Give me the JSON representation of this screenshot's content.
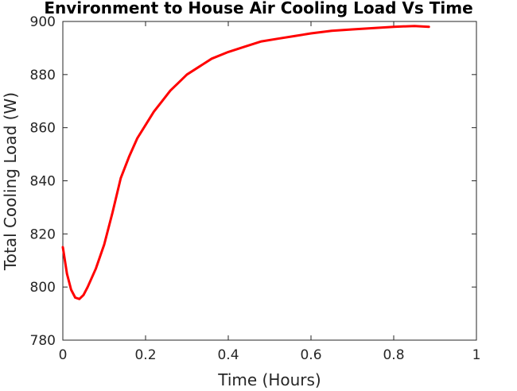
{
  "chart_data": {
    "type": "line",
    "title": "Environment to House Air Cooling Load Vs Time",
    "xlabel": "Time (Hours)",
    "ylabel": "Total Cooling Load (W)",
    "xlim": [
      0,
      1
    ],
    "ylim": [
      780,
      900
    ],
    "xticks": [
      "0",
      "0.2",
      "0.4",
      "0.6",
      "0.8",
      "1"
    ],
    "yticks": [
      "780",
      "800",
      "820",
      "840",
      "860",
      "880",
      "900"
    ],
    "grid": false,
    "line_color": "#ff0000",
    "series": [
      {
        "x": [
          0,
          0.01,
          0.02,
          0.03,
          0.04,
          0.05,
          0.06,
          0.08,
          0.1,
          0.12,
          0.14,
          0.16,
          0.18,
          0.2,
          0.22,
          0.24,
          0.26,
          0.28,
          0.3,
          0.33,
          0.36,
          0.4,
          0.44,
          0.48,
          0.52,
          0.56,
          0.6,
          0.65,
          0.7,
          0.75,
          0.8,
          0.85,
          0.885
        ],
        "y": [
          815,
          805,
          799,
          796,
          795.5,
          797,
          800,
          807,
          816,
          828,
          841,
          849,
          856,
          861,
          866,
          870,
          874,
          877,
          880,
          883,
          886,
          888.5,
          890.5,
          892.5,
          893.5,
          894.5,
          895.5,
          896.5,
          897,
          897.5,
          898,
          898.3,
          898
        ]
      }
    ]
  }
}
